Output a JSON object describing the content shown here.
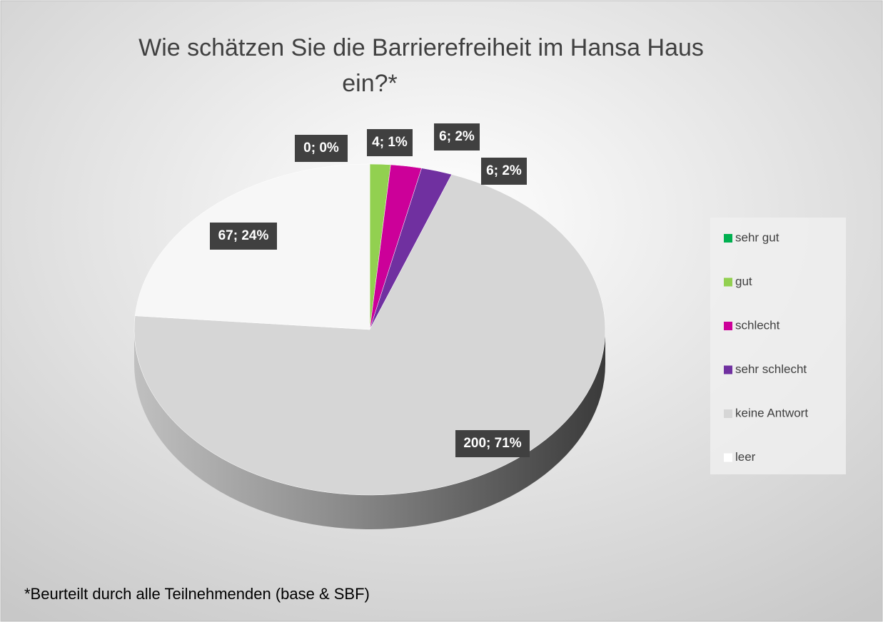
{
  "chart_data": {
    "type": "pie",
    "title": "Wie schätzen Sie die Barrierefreiheit im Hansa Haus ein?*",
    "categories": [
      "sehr gut",
      "gut",
      "schlecht",
      "sehr schlecht",
      "keine Antwort",
      "leer"
    ],
    "values": [
      0,
      4,
      6,
      6,
      200,
      67
    ],
    "value_labels": [
      "0; 0%",
      "4; 1%",
      "6; 2%",
      "6; 2%",
      "200; 71%",
      "67; 24%"
    ],
    "colors": [
      "#00b050",
      "#92d050",
      "#cc0099",
      "#7030a0",
      "#d6d6d6",
      "#f7f7f7"
    ],
    "footnote": "*Beurteilt durch alle Teilnehmenden (base & SBF)"
  }
}
